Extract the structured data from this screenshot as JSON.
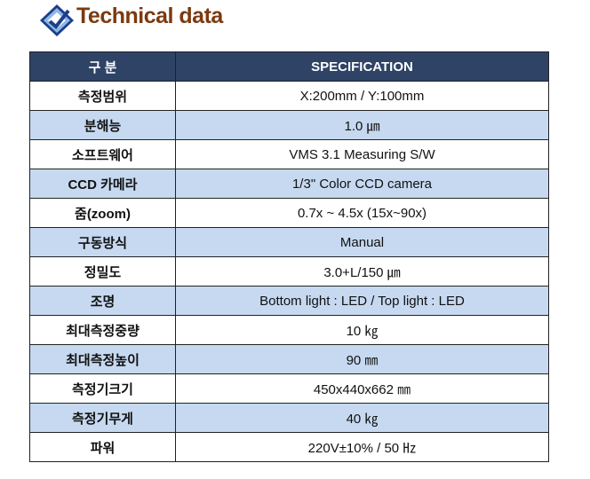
{
  "header": {
    "title": "Technical data"
  },
  "table": {
    "columns": [
      "구 분",
      "SPECIFICATION"
    ],
    "rows": [
      [
        "측정범위",
        "X:200mm / Y:100mm"
      ],
      [
        "분해능",
        "1.0 ㎛"
      ],
      [
        "소프트웨어",
        "VMS 3.1 Measuring S/W"
      ],
      [
        "CCD 카메라",
        "1/3\" Color CCD camera"
      ],
      [
        "줌(zoom)",
        "0.7x ~ 4.5x (15x~90x)"
      ],
      [
        "구동방식",
        "Manual"
      ],
      [
        "정밀도",
        "3.0+L/150 ㎛"
      ],
      [
        "조명",
        "Bottom light : LED / Top light : LED"
      ],
      [
        "최대측정중량",
        "10 ㎏"
      ],
      [
        "최대측정높이",
        "90 ㎜"
      ],
      [
        "측정기크기",
        "450x440x662 ㎜"
      ],
      [
        "측정기무게",
        "40 ㎏"
      ],
      [
        "파워",
        "220V±10% /  50 ㎐"
      ]
    ]
  }
}
